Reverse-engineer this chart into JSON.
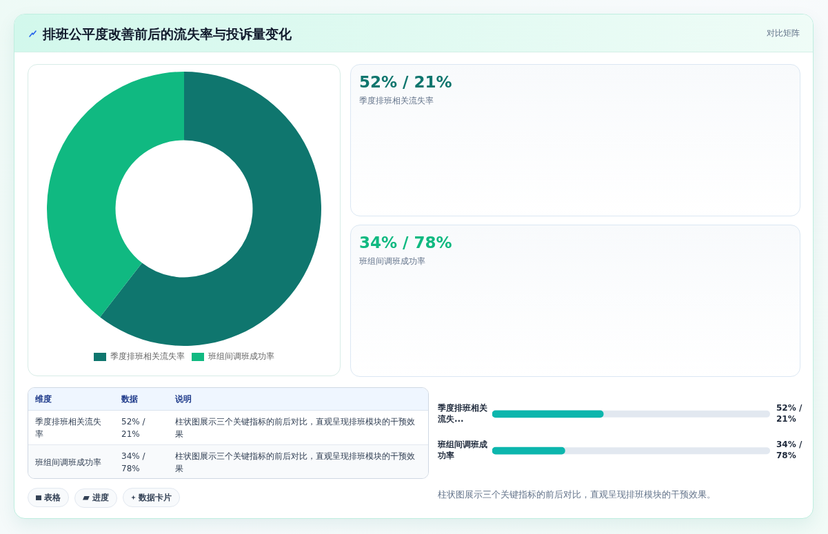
{
  "chart_data": [
    {
      "type": "donut",
      "title": "排班公平度改善前后的流失率与投诉量变化",
      "annotations": [
        "对比矩阵"
      ],
      "categories": [
        "季度排班相关流失率",
        "班组间调班成功率"
      ],
      "values": [
        60.5,
        39.5
      ],
      "colors": [
        "#0f766e",
        "#10b981"
      ],
      "legend": "bottom"
    },
    {
      "type": "other",
      "annotations": [
        "52% / 21%",
        "季度排班相关流失率",
        "34% / 78%",
        "班组间调班成功率"
      ]
    },
    {
      "type": "other",
      "annotations": [
        "维度",
        "数据",
        "说明",
        "季度排班相关流失率",
        "52% / 21%",
        "柱状图展示三个关键指标的前后对比，直观呈现排班模块的干预效果",
        "班组间调班成功率",
        "34% / 78%",
        "柱状图展示三个关键指标的前后对比，直观呈现排班模块的干预效果"
      ]
    },
    {
      "type": "other",
      "annotations": [
        "表格",
        "进度",
        "数据卡片"
      ]
    },
    {
      "type": "bar",
      "orientation": "horizontal",
      "categories": [
        "季度排班相关流失...",
        "班组间调班成功率"
      ],
      "values": [
        52,
        34
      ],
      "color": "#0cb6ad",
      "xlim": [
        0,
        130
      ],
      "tick_labels": "y",
      "value_labels": [
        "52% / 21%",
        "34% / 78%"
      ],
      "annotations": [
        "柱状图展示三个关键指标的前后对比，直观呈现排班模块的干预效果。"
      ]
    }
  ]
}
